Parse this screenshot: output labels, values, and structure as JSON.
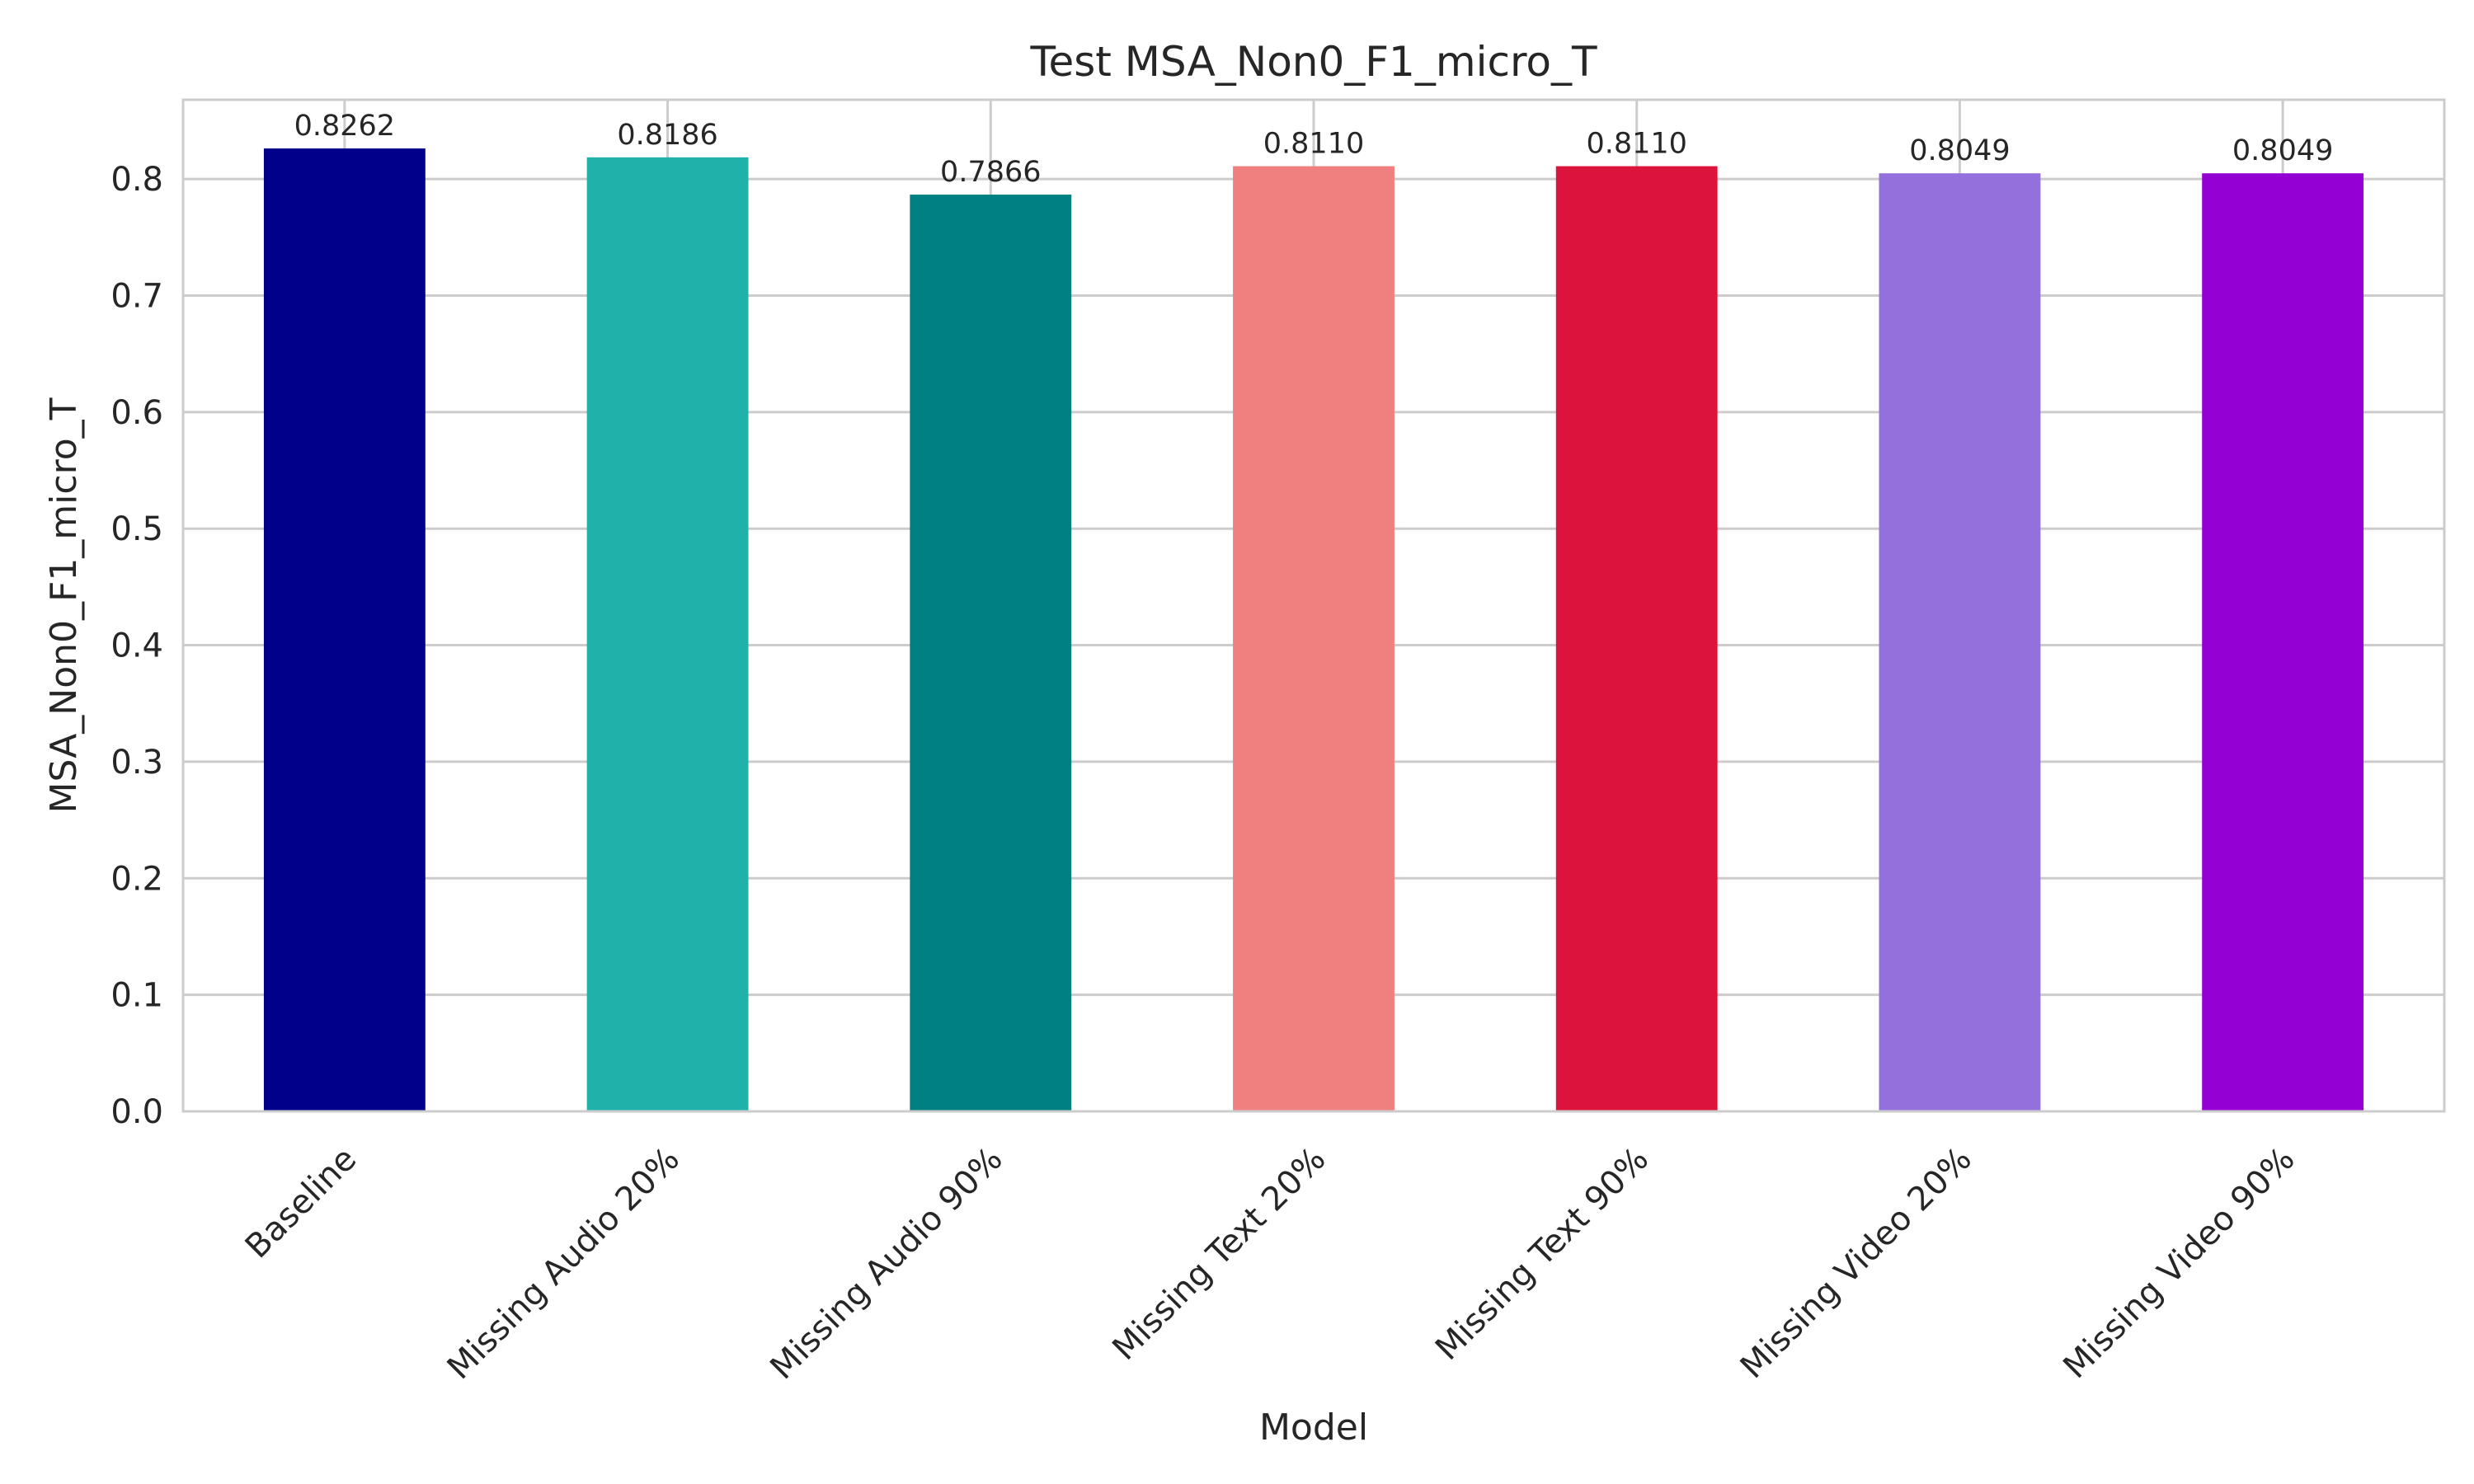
{
  "chart_data": {
    "type": "bar",
    "title": "Test MSA_Non0_F1_micro_T",
    "xlabel": "Model",
    "ylabel": "MSA_Non0_F1_micro_T",
    "categories": [
      "Baseline",
      "Missing Audio 20%",
      "Missing Audio 90%",
      "Missing Text 20%",
      "Missing Text 90%",
      "Missing Video 20%",
      "Missing Video 90%"
    ],
    "values": [
      0.8262,
      0.8186,
      0.7866,
      0.811,
      0.811,
      0.8049,
      0.8049
    ],
    "value_labels": [
      "0.8262",
      "0.8186",
      "0.7866",
      "0.8110",
      "0.8110",
      "0.8049",
      "0.8049"
    ],
    "colors": [
      "#00008b",
      "#20b2aa",
      "#008080",
      "#f08080",
      "#dc143c",
      "#9370db",
      "#9400d3"
    ],
    "ylim": [
      0,
      0.868
    ],
    "yticks": [
      0.0,
      0.1,
      0.2,
      0.3,
      0.4,
      0.5,
      0.6,
      0.7,
      0.8
    ],
    "ytick_labels": [
      "0.0",
      "0.1",
      "0.2",
      "0.3",
      "0.4",
      "0.5",
      "0.6",
      "0.7",
      "0.8"
    ],
    "grid": true,
    "legend": "none"
  }
}
